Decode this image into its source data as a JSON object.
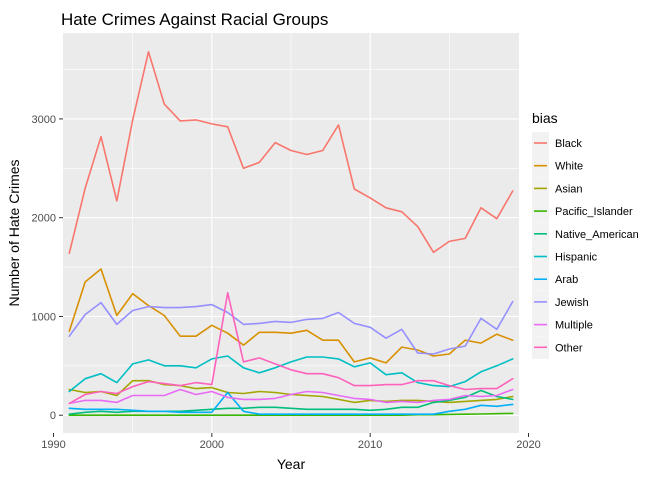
{
  "chart_data": {
    "type": "line",
    "title": "Hate Crimes Against Racial Groups",
    "xlabel": "Year",
    "ylabel": "Number of Hate Crimes",
    "xlim": [
      1990.6,
      2019.4
    ],
    "ylim": [
      -180,
      3870
    ],
    "xticks": [
      1990,
      2000,
      2010,
      2020
    ],
    "yticks": [
      0,
      1000,
      2000,
      3000
    ],
    "grid": true,
    "legend": {
      "title": "bias",
      "position": "right"
    },
    "x": [
      1991,
      1992,
      1993,
      1994,
      1995,
      1996,
      1997,
      1998,
      1999,
      2000,
      2001,
      2002,
      2003,
      2004,
      2005,
      2006,
      2007,
      2008,
      2009,
      2010,
      2011,
      2012,
      2013,
      2014,
      2015,
      2016,
      2017,
      2018,
      2019
    ],
    "series": [
      {
        "name": "Black",
        "color": "#F8766D",
        "values": [
          1640,
          2300,
          2820,
          2170,
          2990,
          3680,
          3150,
          2980,
          2990,
          2950,
          2920,
          2500,
          2560,
          2760,
          2680,
          2640,
          2680,
          2940,
          2290,
          2200,
          2100,
          2060,
          1910,
          1650,
          1760,
          1790,
          2100,
          1990,
          2270
        ]
      },
      {
        "name": "White",
        "color": "#D89000",
        "values": [
          850,
          1350,
          1480,
          1010,
          1230,
          1110,
          1010,
          800,
          800,
          910,
          830,
          710,
          840,
          840,
          830,
          860,
          760,
          760,
          540,
          580,
          530,
          690,
          660,
          600,
          620,
          760,
          730,
          820,
          760
        ]
      },
      {
        "name": "Asian",
        "color": "#A3A500",
        "values": [
          260,
          230,
          240,
          200,
          350,
          350,
          310,
          300,
          270,
          280,
          230,
          220,
          240,
          230,
          210,
          200,
          190,
          160,
          130,
          150,
          140,
          150,
          150,
          140,
          130,
          140,
          150,
          160,
          190
        ]
      },
      {
        "name": "Pacific_Islander",
        "color": "#39B600",
        "values": [
          0,
          0,
          0,
          0,
          0,
          0,
          0,
          0,
          0,
          0,
          0,
          0,
          0,
          0,
          0,
          0,
          0,
          0,
          0,
          0,
          0,
          0,
          5,
          5,
          8,
          10,
          12,
          15,
          18
        ]
      },
      {
        "name": "Native_American",
        "color": "#00BF7D",
        "values": [
          10,
          30,
          40,
          30,
          40,
          40,
          40,
          40,
          50,
          60,
          70,
          70,
          80,
          80,
          70,
          60,
          60,
          60,
          60,
          50,
          60,
          80,
          80,
          130,
          150,
          180,
          250,
          190,
          160
        ]
      },
      {
        "name": "Hispanic",
        "color": "#00BFC4",
        "values": [
          240,
          370,
          420,
          330,
          520,
          560,
          500,
          500,
          480,
          570,
          600,
          480,
          430,
          480,
          540,
          590,
          590,
          570,
          490,
          530,
          410,
          430,
          330,
          300,
          290,
          340,
          440,
          500,
          570
        ]
      },
      {
        "name": "Arab",
        "color": "#00B0F6",
        "values": [
          70,
          60,
          60,
          60,
          50,
          40,
          40,
          30,
          30,
          30,
          230,
          40,
          10,
          10,
          10,
          10,
          10,
          10,
          10,
          10,
          10,
          10,
          10,
          10,
          40,
          60,
          100,
          90,
          110
        ]
      },
      {
        "name": "Jewish",
        "color": "#9590FF",
        "values": [
          800,
          1020,
          1140,
          920,
          1060,
          1100,
          1090,
          1090,
          1100,
          1120,
          1040,
          920,
          930,
          950,
          940,
          970,
          980,
          1040,
          930,
          890,
          780,
          870,
          630,
          620,
          670,
          700,
          980,
          870,
          1150
        ]
      },
      {
        "name": "Multiple",
        "color": "#E76BF3",
        "values": [
          120,
          150,
          150,
          130,
          200,
          200,
          200,
          260,
          210,
          240,
          180,
          160,
          160,
          170,
          210,
          240,
          230,
          200,
          170,
          160,
          130,
          140,
          130,
          150,
          160,
          200,
          190,
          200,
          260
        ]
      },
      {
        "name": "Other",
        "color": "#FF62BC",
        "values": [
          120,
          210,
          240,
          220,
          290,
          340,
          320,
          300,
          330,
          310,
          1240,
          540,
          580,
          520,
          460,
          420,
          420,
          380,
          300,
          300,
          310,
          310,
          350,
          350,
          300,
          260,
          270,
          270,
          370
        ]
      }
    ]
  }
}
